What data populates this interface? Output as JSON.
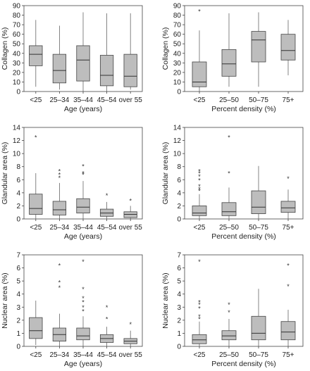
{
  "colors": {
    "box_fill": "#bdbdbd",
    "box_stroke": "#444444",
    "frame": "#444444"
  },
  "chart_data": [
    {
      "type": "box",
      "xlabel": "Age (years)",
      "ylabel": "Collagen (%)",
      "ylim": [
        0,
        90
      ],
      "yticks": [
        0,
        10,
        20,
        30,
        40,
        50,
        60,
        70,
        80,
        90
      ],
      "categories": [
        "<25",
        "25–34",
        "35–44",
        "45–54",
        "over 55"
      ],
      "boxes": [
        {
          "min": 5,
          "q1": 27,
          "median": 39,
          "q3": 48,
          "max": 75,
          "outliers": []
        },
        {
          "min": 2,
          "q1": 9,
          "median": 22,
          "q3": 39,
          "max": 69,
          "outliers": []
        },
        {
          "min": 0,
          "q1": 11,
          "median": 33,
          "q3": 48,
          "max": 83,
          "outliers": []
        },
        {
          "min": 0,
          "q1": 6,
          "median": 17,
          "q3": 38,
          "max": 82,
          "outliers": []
        },
        {
          "min": 2,
          "q1": 5,
          "median": 16,
          "q3": 39,
          "max": 82,
          "outliers": []
        }
      ]
    },
    {
      "type": "box",
      "xlabel": "Percent density (%)",
      "ylabel": "Collagen (%)",
      "ylim": [
        0,
        90
      ],
      "yticks": [
        0,
        10,
        20,
        30,
        40,
        50,
        60,
        70,
        80,
        90
      ],
      "categories": [
        "<25",
        "25–50",
        "50–75",
        "75+"
      ],
      "boxes": [
        {
          "min": 0,
          "q1": 5,
          "median": 10,
          "q3": 31,
          "max": 64,
          "outliers": [
            84
          ]
        },
        {
          "min": 5,
          "q1": 16,
          "median": 29,
          "q3": 44,
          "max": 82,
          "outliers": []
        },
        {
          "min": 5,
          "q1": 31,
          "median": 54,
          "q3": 63,
          "max": 83,
          "outliers": []
        },
        {
          "min": 17,
          "q1": 33,
          "median": 43,
          "q3": 60,
          "max": 75,
          "outliers": []
        }
      ]
    },
    {
      "type": "box",
      "xlabel": "Age (years)",
      "ylabel": "Glandular area (%)",
      "ylim": [
        0,
        14
      ],
      "yticks": [
        0,
        2,
        4,
        6,
        8,
        10,
        12,
        14
      ],
      "categories": [
        "<25",
        "25–34",
        "35–44",
        "45–54",
        "over 55"
      ],
      "boxes": [
        {
          "min": 0,
          "q1": 0.7,
          "median": 1.6,
          "q3": 3.8,
          "max": 7.0,
          "outliers": [
            12.5
          ]
        },
        {
          "min": 0,
          "q1": 0.6,
          "median": 1.4,
          "q3": 2.7,
          "max": 5.5,
          "outliers": [
            6.3,
            6.8,
            7.3
          ]
        },
        {
          "min": 0,
          "q1": 0.9,
          "median": 1.8,
          "q3": 3.1,
          "max": 5.8,
          "outliers": [
            6.8,
            7.0,
            8.1
          ]
        },
        {
          "min": 0,
          "q1": 0.4,
          "median": 0.9,
          "q3": 1.5,
          "max": 2.6,
          "outliers": [
            3.6
          ]
        },
        {
          "min": 0,
          "q1": 0.2,
          "median": 0.7,
          "q3": 1.1,
          "max": 2.0,
          "outliers": [
            2.8
          ]
        }
      ]
    },
    {
      "type": "box",
      "xlabel": "Percent density (%)",
      "ylabel": "Glandular area (%)",
      "ylim": [
        0,
        14
      ],
      "yticks": [
        0,
        2,
        4,
        6,
        8,
        10,
        12,
        14
      ],
      "categories": [
        "<25",
        "25–50",
        "50–75",
        "75+"
      ],
      "boxes": [
        {
          "min": 0,
          "q1": 0.5,
          "median": 0.9,
          "q3": 2.0,
          "max": 3.8,
          "outliers": [
            4.3,
            4.6,
            5.0,
            5.9,
            6.5,
            7.0,
            7.3
          ]
        },
        {
          "min": 0,
          "q1": 0.5,
          "median": 1.1,
          "q3": 2.5,
          "max": 4.8,
          "outliers": [
            7.0,
            12.5
          ]
        },
        {
          "min": 0,
          "q1": 0.8,
          "median": 1.8,
          "q3": 4.3,
          "max": 8.1,
          "outliers": []
        },
        {
          "min": 0,
          "q1": 1.0,
          "median": 1.7,
          "q3": 2.7,
          "max": 4.5,
          "outliers": [
            6.2
          ]
        }
      ]
    },
    {
      "type": "box",
      "xlabel": "Age (years)",
      "ylabel": "Nuclear area (%)",
      "ylim": [
        0,
        7
      ],
      "yticks": [
        0,
        1,
        2,
        3,
        4,
        5,
        6,
        7
      ],
      "categories": [
        "<25",
        "25–34",
        "35–44",
        "45–54",
        "over 55"
      ],
      "boxes": [
        {
          "min": 0.1,
          "q1": 0.6,
          "median": 1.2,
          "q3": 2.2,
          "max": 3.5,
          "outliers": []
        },
        {
          "min": 0,
          "q1": 0.4,
          "median": 0.9,
          "q3": 1.4,
          "max": 2.5,
          "outliers": [
            4.5,
            4.9,
            6.2
          ]
        },
        {
          "min": 0,
          "q1": 0.5,
          "median": 0.8,
          "q3": 1.4,
          "max": 2.3,
          "outliers": [
            2.7,
            3.0,
            3.4,
            3.7,
            4.4,
            6.5
          ]
        },
        {
          "min": 0,
          "q1": 0.3,
          "median": 0.6,
          "q3": 0.9,
          "max": 1.5,
          "outliers": [
            2.1,
            3.0
          ]
        },
        {
          "min": 0,
          "q1": 0.2,
          "median": 0.4,
          "q3": 0.6,
          "max": 1.2,
          "outliers": [
            1.7
          ]
        }
      ]
    },
    {
      "type": "box",
      "xlabel": "Percent density (%)",
      "ylabel": "Nuclear area (%)",
      "ylim": [
        0,
        7
      ],
      "yticks": [
        0,
        1,
        2,
        3,
        4,
        5,
        6,
        7
      ],
      "categories": [
        "<25",
        "25–50",
        "50–75",
        "75+"
      ],
      "boxes": [
        {
          "min": 0,
          "q1": 0.2,
          "median": 0.5,
          "q3": 0.9,
          "max": 1.9,
          "outliers": [
            2.1,
            2.3,
            2.9,
            3.2,
            3.4,
            6.5
          ]
        },
        {
          "min": 0,
          "q1": 0.5,
          "median": 0.8,
          "q3": 1.2,
          "max": 2.1,
          "outliers": [
            2.6,
            3.2
          ]
        },
        {
          "min": 0,
          "q1": 0.5,
          "median": 1.0,
          "q3": 2.3,
          "max": 4.4,
          "outliers": []
        },
        {
          "min": 0,
          "q1": 0.5,
          "median": 1.1,
          "q3": 1.9,
          "max": 2.8,
          "outliers": [
            4.6,
            6.2
          ]
        }
      ]
    }
  ]
}
